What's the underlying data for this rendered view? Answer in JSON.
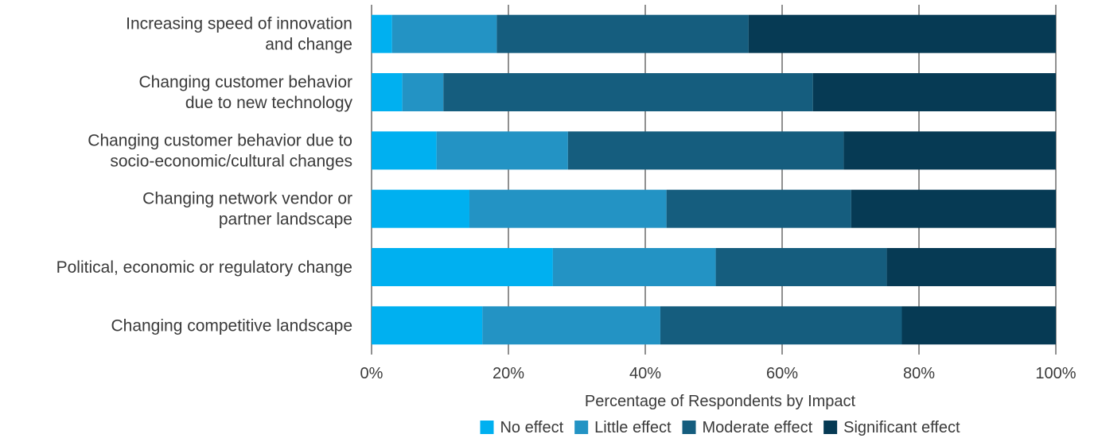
{
  "chart_data": {
    "type": "bar",
    "orientation": "horizontal",
    "stacked": true,
    "categories": [
      [
        "Increasing speed of innovation",
        "and change"
      ],
      [
        "Changing customer behavior",
        "due to new technology"
      ],
      [
        "Changing customer behavior due to",
        "socio-economic/cultural changes"
      ],
      [
        "Changing network vendor or",
        "partner landscape"
      ],
      [
        "Political, economic or regulatory change"
      ],
      [
        "Changing competitive landscape"
      ]
    ],
    "series": [
      {
        "name": "No effect",
        "color": "#00b0f0",
        "values": [
          3,
          4.5,
          9.5,
          14.3,
          26.5,
          16.2
        ]
      },
      {
        "name": "Little effect",
        "color": "#2393c4",
        "values": [
          15.3,
          6,
          19.2,
          28.8,
          23.8,
          26
        ]
      },
      {
        "name": "Moderate effect",
        "color": "#155d7e",
        "values": [
          36.8,
          54,
          40.3,
          27,
          25,
          35.3
        ]
      },
      {
        "name": "Significant effect",
        "color": "#063a54",
        "values": [
          44.9,
          35.5,
          31,
          29.9,
          24.7,
          22.5
        ]
      }
    ],
    "xlabel": "Percentage of Respondents by Impact",
    "xlim": [
      0,
      100
    ],
    "xticks": [
      "0%",
      "20%",
      "40%",
      "60%",
      "80%",
      "100%"
    ],
    "grid": true,
    "legend_position": "bottom"
  }
}
